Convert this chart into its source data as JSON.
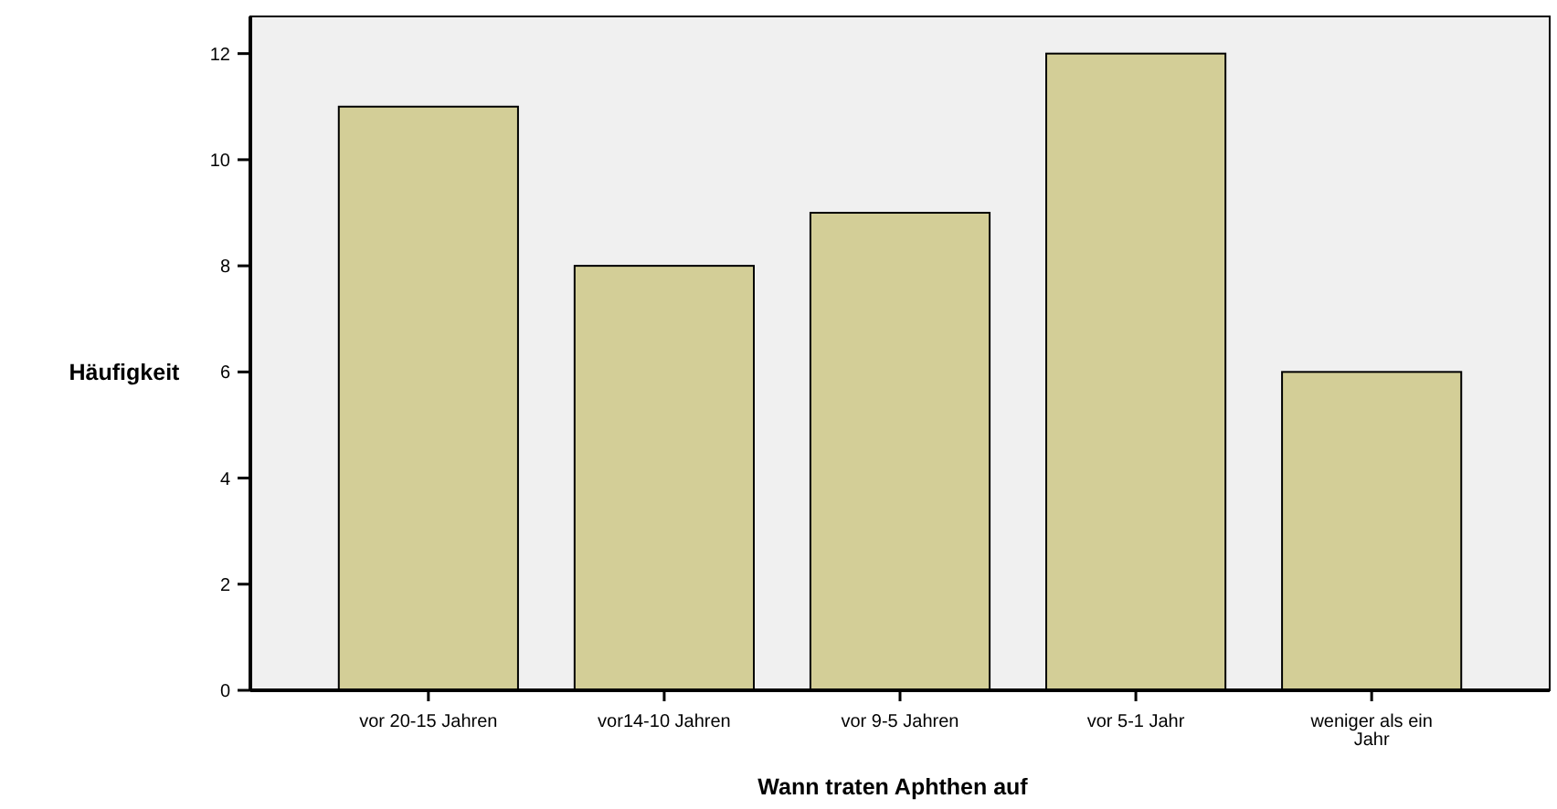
{
  "chart_data": {
    "type": "bar",
    "xlabel": "Wann traten Aphthen auf",
    "ylabel": "Häufigkeit",
    "categories": [
      "vor 20-15 Jahren",
      "vor14-10 Jahren",
      "vor 9-5 Jahren",
      "vor 5-1 Jahr",
      "weniger als ein Jahr"
    ],
    "values": [
      11,
      8,
      9,
      12,
      6
    ],
    "color": "#d3ce97",
    "ylim": [
      0,
      12.7
    ],
    "yticks": [
      0,
      2,
      4,
      6,
      8,
      10,
      12
    ]
  }
}
